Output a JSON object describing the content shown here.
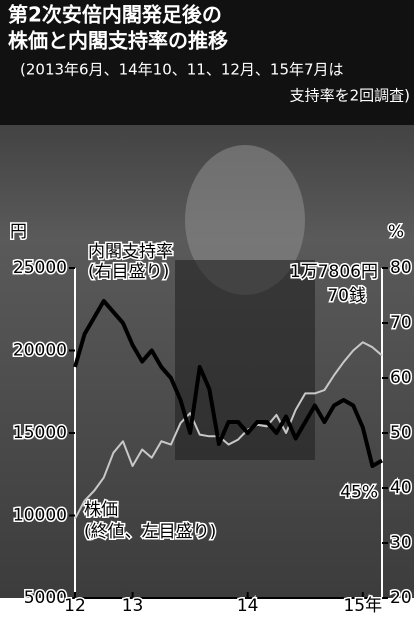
{
  "chart_data": {
    "type": "line",
    "title": "第2次安倍内閣発足後の",
    "title_line2": "株価と内閣支持率の推移",
    "subtitle": "(2013年6月、14年10、11、12月、15年7月は",
    "subtitle_line2": "支持率を2回調査)",
    "y_unit": "円",
    "y2_unit": "%",
    "categories": [
      "12",
      null,
      null,
      null,
      null,
      null,
      "13",
      null,
      null,
      null,
      null,
      null,
      null,
      null,
      null,
      null,
      null,
      null,
      "14",
      null,
      null,
      null,
      null,
      null,
      null,
      null,
      null,
      null,
      null,
      null,
      "15年",
      null,
      null
    ],
    "series": [
      {
        "name": "株価",
        "note": "(終値、左目盛り)",
        "color": "#c8c8c8",
        "values": [
          9800,
          10900,
          11500,
          12300,
          13800,
          14500,
          13000,
          14000,
          13500,
          14500,
          14300,
          15600,
          16200,
          14900,
          14800,
          14800,
          14300,
          14600,
          15200,
          15500,
          15400,
          16100,
          15000,
          16400,
          17400,
          17400,
          17600,
          18500,
          19300,
          20000,
          20500,
          20200,
          19700
        ]
      },
      {
        "name": "内閣支持率",
        "note": "(右目盛り)",
        "color": "#000000",
        "axis": "y2",
        "values": [
          62,
          68,
          71,
          74,
          72,
          70,
          66,
          63,
          65,
          62,
          60,
          56,
          50,
          62,
          58,
          48,
          52,
          52,
          50,
          52,
          52,
          50,
          53,
          49,
          52,
          55,
          52,
          55,
          56,
          55,
          51,
          44,
          45
        ],
        "value_labels": [
          null,
          null,
          null,
          null,
          null,
          null,
          null,
          null,
          null,
          null,
          null,
          null,
          null,
          null,
          null,
          null,
          null,
          null,
          null,
          null,
          null,
          null,
          null,
          null,
          null,
          null,
          null,
          null,
          null,
          null,
          null,
          null,
          "45%"
        ]
      }
    ],
    "annotations": [
      "1万7806円",
      "70銭"
    ],
    "ylim": [
      5000,
      25000
    ],
    "yticks": [
      5000,
      10000,
      15000,
      20000,
      25000
    ],
    "y2lim": [
      20,
      80
    ],
    "y2ticks": [
      20,
      30,
      40,
      50,
      60,
      70,
      80
    ]
  }
}
